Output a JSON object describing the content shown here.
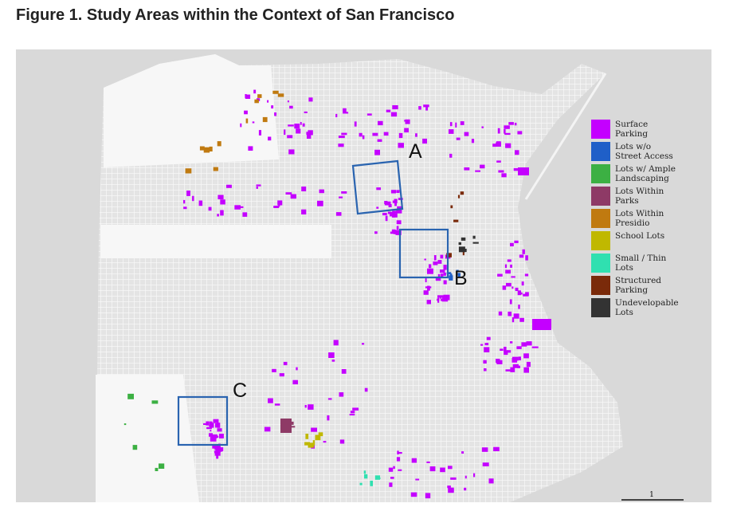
{
  "title": "Figure 1. Study Areas within the Context of San Francisco",
  "legend": [
    {
      "label": "Surface Parking",
      "color": "#c400ff"
    },
    {
      "label": "Lots w/o Street Access",
      "color": "#1f5fc8"
    },
    {
      "label": "Lots w/ Ample Landscaping",
      "color": "#3cb043"
    },
    {
      "label": "Lots Within Parks",
      "color": "#8e3a66"
    },
    {
      "label": "Lots Within Presidio",
      "color": "#c07a10"
    },
    {
      "label": "School Lots",
      "color": "#c0b800"
    },
    {
      "label": "Small / Thin Lots",
      "color": "#30e0b0"
    },
    {
      "label": "Structured Parking",
      "color": "#7a2a0a"
    },
    {
      "label": "Undevelopable Lots",
      "color": "#333333"
    }
  ],
  "study_areas": [
    {
      "label": "A"
    },
    {
      "label": "B"
    },
    {
      "label": "C"
    }
  ],
  "scale_label": "1"
}
